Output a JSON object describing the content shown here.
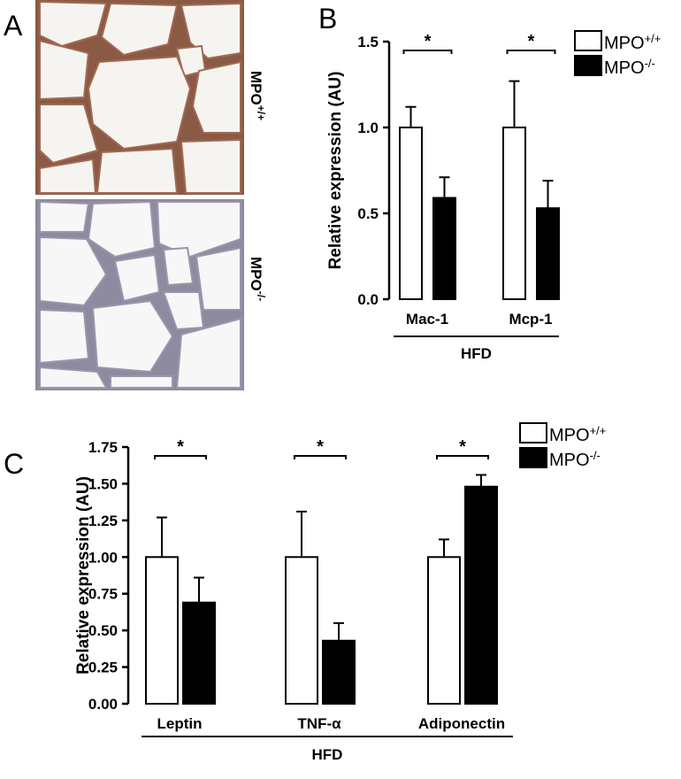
{
  "panel_labels": [
    "A",
    "B",
    "C"
  ],
  "images": [
    {
      "label": "MPO",
      "label_superscript": "+/+"
    },
    {
      "label": "MPO",
      "label_superscript": "-/-"
    }
  ],
  "chart_data": [
    {
      "type": "bar",
      "y_label": "Relative expression  (AU)",
      "x_label": "HFD",
      "categories": [
        "Mac-1",
        "Mcp-1"
      ],
      "series": [
        {
          "name": "MPO",
          "superscript": "+/+",
          "color": "#ffffff",
          "values": [
            1.0,
            1.0
          ],
          "errors": [
            0.12,
            0.27
          ]
        },
        {
          "name": "MPO",
          "superscript": "-/-",
          "color": "#000000",
          "values": [
            0.59,
            0.53
          ],
          "errors": [
            0.12,
            0.16
          ]
        }
      ],
      "significance": [
        "*",
        "*"
      ],
      "ylim": [
        0,
        1.5
      ],
      "yticks": [
        {
          "value": 0,
          "label": "0.0"
        },
        {
          "value": 0.5,
          "label": "0.5"
        },
        {
          "value": 1,
          "label": "1.0"
        },
        {
          "value": 1.5,
          "label": "1.5"
        }
      ]
    },
    {
      "type": "bar",
      "y_label": "Relative expression (AU)",
      "x_label": "HFD",
      "categories": [
        "Leptin",
        "TNF-α",
        "Adiponectin"
      ],
      "series": [
        {
          "name": "MPO",
          "superscript": "+/+",
          "color": "#ffffff",
          "values": [
            1.0,
            1.0,
            1.0
          ],
          "errors": [
            0.27,
            0.31,
            0.12
          ]
        },
        {
          "name": "MPO",
          "superscript": "-/-",
          "color": "#000000",
          "values": [
            0.69,
            0.43,
            1.48
          ],
          "errors": [
            0.17,
            0.12,
            0.08
          ]
        }
      ],
      "significance": [
        "*",
        "*",
        "*"
      ],
      "ylim": [
        0,
        1.75
      ],
      "yticks": [
        {
          "value": 0,
          "label": "0.00"
        },
        {
          "value": 0.25,
          "label": "0.25"
        },
        {
          "value": 0.5,
          "label": "0.50"
        },
        {
          "value": 0.75,
          "label": "0.75"
        },
        {
          "value": 1,
          "label": "1.00"
        },
        {
          "value": 1.25,
          "label": "1.25"
        },
        {
          "value": 1.5,
          "label": "1.50"
        },
        {
          "value": 1.75,
          "label": "1.75"
        }
      ]
    }
  ]
}
